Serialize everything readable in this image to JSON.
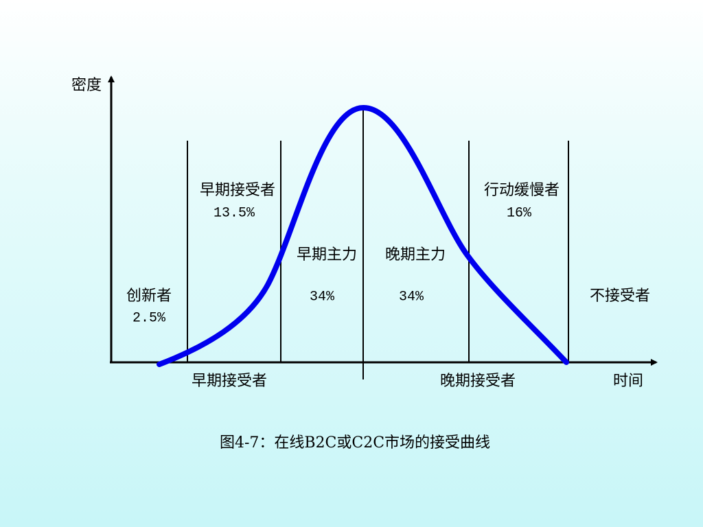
{
  "axis": {
    "y_label": "密度",
    "x_label": "时间"
  },
  "segments": [
    {
      "label": "创新者",
      "share": "2.5%"
    },
    {
      "label": "早期接受者",
      "share": "13.5%"
    },
    {
      "label": "早期主力",
      "share": "34%"
    },
    {
      "label": "晚期主力",
      "share": "34%"
    },
    {
      "label": "行动缓慢者",
      "share": "16%"
    },
    {
      "label": "不接受者"
    }
  ],
  "groups": [
    "早期接受者",
    "晚期接受者"
  ],
  "caption": "图4-7：在线B2C或C2C市场的接受曲线"
}
